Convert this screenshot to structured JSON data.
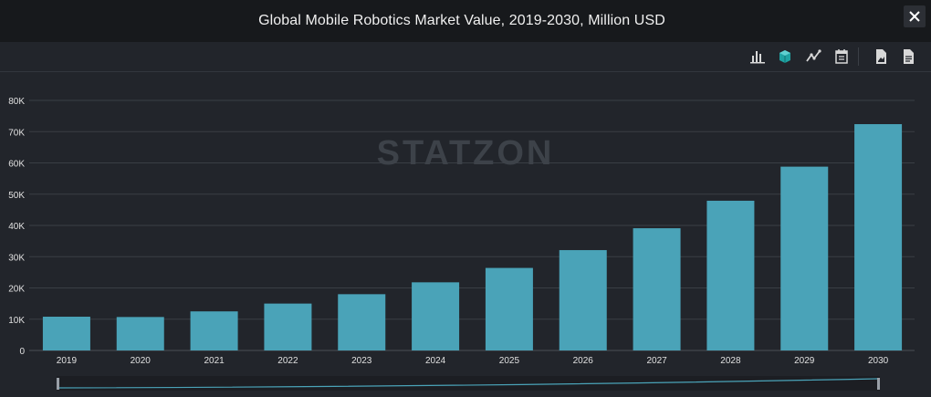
{
  "window": {
    "title": "Global Mobile Robotics Market Value, 2019-2030, Million USD"
  },
  "toolbar": {
    "icons": [
      "bar-chart-icon",
      "3d-cube-icon",
      "line-chart-icon",
      "table-icon",
      "download-image-icon",
      "download-document-icon"
    ]
  },
  "watermark": "STATZON",
  "colors": {
    "bar": "#4aa3b8",
    "background": "#22252b",
    "header": "#17191c",
    "grid": "#3a3e45",
    "accent": "#1fa3a3"
  },
  "chart_data": {
    "type": "bar",
    "title": "Global Mobile Robotics Market Value, 2019-2030, Million USD",
    "xlabel": "",
    "ylabel": "",
    "categories": [
      "2019",
      "2020",
      "2021",
      "2022",
      "2023",
      "2024",
      "2025",
      "2026",
      "2027",
      "2028",
      "2029",
      "2030"
    ],
    "values": [
      10800,
      10700,
      12500,
      15000,
      18000,
      21800,
      26400,
      32100,
      39100,
      47900,
      58800,
      72400
    ],
    "ylim": [
      0,
      80000
    ],
    "yticks": [
      0,
      10000,
      20000,
      30000,
      40000,
      50000,
      60000,
      70000,
      80000
    ],
    "ytick_labels": [
      "0",
      "10K",
      "20K",
      "30K",
      "40K",
      "50K",
      "60K",
      "70K",
      "80K"
    ],
    "grid": true,
    "legend": "none"
  }
}
